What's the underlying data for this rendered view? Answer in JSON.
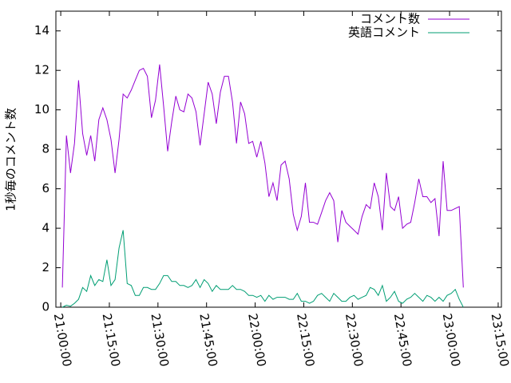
{
  "chart_data": {
    "type": "line",
    "y_label": "1秒毎のコメント数",
    "x": [
      "21:00:30",
      "21:01:45",
      "21:03:00",
      "21:04:15",
      "21:05:30",
      "21:06:45",
      "21:08:00",
      "21:09:15",
      "21:10:30",
      "21:11:45",
      "21:13:00",
      "21:14:15",
      "21:15:30",
      "21:16:45",
      "21:18:00",
      "21:19:15",
      "21:20:30",
      "21:21:45",
      "21:23:00",
      "21:24:15",
      "21:25:30",
      "21:26:45",
      "21:28:00",
      "21:29:15",
      "21:30:30",
      "21:31:45",
      "21:33:00",
      "21:34:15",
      "21:35:30",
      "21:36:45",
      "21:38:00",
      "21:39:15",
      "21:40:30",
      "21:41:45",
      "21:43:00",
      "21:44:15",
      "21:45:30",
      "21:46:45",
      "21:48:00",
      "21:49:15",
      "21:50:30",
      "21:51:45",
      "21:53:00",
      "21:54:15",
      "21:55:30",
      "21:56:45",
      "21:58:00",
      "21:59:15",
      "22:00:30",
      "22:01:45",
      "22:03:00",
      "22:04:15",
      "22:05:30",
      "22:06:45",
      "22:08:00",
      "22:09:15",
      "22:10:30",
      "22:11:45",
      "22:13:00",
      "22:14:15",
      "22:15:30",
      "22:16:45",
      "22:18:00",
      "22:19:15",
      "22:20:30",
      "22:21:45",
      "22:23:00",
      "22:24:15",
      "22:25:30",
      "22:26:45",
      "22:28:00",
      "22:29:15",
      "22:30:30",
      "22:31:45",
      "22:33:00",
      "22:34:15",
      "22:35:30",
      "22:36:45",
      "22:38:00",
      "22:39:15",
      "22:40:30",
      "22:41:45",
      "22:43:00",
      "22:44:15",
      "22:45:30",
      "22:46:45",
      "22:48:00",
      "22:49:15",
      "22:50:30",
      "22:51:45",
      "22:53:00",
      "22:54:15",
      "22:55:30",
      "22:56:45",
      "22:58:00",
      "22:59:15",
      "23:00:30",
      "23:01:45",
      "23:03:00",
      "23:04:15"
    ],
    "series": [
      {
        "name": "コメント数",
        "color": "#9400d3",
        "values": [
          1.0,
          8.7,
          6.8,
          8.3,
          11.5,
          8.8,
          7.7,
          8.7,
          7.4,
          9.5,
          10.1,
          9.5,
          8.5,
          6.8,
          8.5,
          10.8,
          10.6,
          11.0,
          11.5,
          12.0,
          12.1,
          11.7,
          9.6,
          10.5,
          12.3,
          10.2,
          7.9,
          9.4,
          10.7,
          10.0,
          9.9,
          10.8,
          10.6,
          9.9,
          8.2,
          9.8,
          11.4,
          10.8,
          9.3,
          10.9,
          11.7,
          11.7,
          10.4,
          8.3,
          10.4,
          9.8,
          8.3,
          8.4,
          7.6,
          8.4,
          7.3,
          5.6,
          6.3,
          5.4,
          7.2,
          7.4,
          6.5,
          4.7,
          3.9,
          4.6,
          6.3,
          4.3,
          4.3,
          4.2,
          4.8,
          5.4,
          5.8,
          5.4,
          3.3,
          4.9,
          4.3,
          4.1,
          3.9,
          3.7,
          4.6,
          5.2,
          5.0,
          6.3,
          5.6,
          3.9,
          6.8,
          5.1,
          4.9,
          5.6,
          4.0,
          4.2,
          4.3,
          5.3,
          6.5,
          5.6,
          5.6,
          5.3,
          5.5,
          3.6,
          7.4,
          4.9,
          4.9,
          5.0,
          5.1,
          1.0
        ]
      },
      {
        "name": "英語コメント",
        "color": "#009e73",
        "values": [
          0,
          0.1,
          0.05,
          0.2,
          0.4,
          1.0,
          0.8,
          1.6,
          1.1,
          1.4,
          1.3,
          2.4,
          1.1,
          1.4,
          3.0,
          3.9,
          1.2,
          1.1,
          0.6,
          0.6,
          1.0,
          1.0,
          0.9,
          0.9,
          1.2,
          1.6,
          1.6,
          1.3,
          1.3,
          1.1,
          1.1,
          1.0,
          1.1,
          1.4,
          1.0,
          1.4,
          1.2,
          0.8,
          1.1,
          0.9,
          0.9,
          0.9,
          1.1,
          0.9,
          0.9,
          0.8,
          0.6,
          0.6,
          0.5,
          0.6,
          0.3,
          0.6,
          0.4,
          0.5,
          0.5,
          0.5,
          0.4,
          0.4,
          0.7,
          0.3,
          0.3,
          0.2,
          0.3,
          0.6,
          0.7,
          0.5,
          0.3,
          0.7,
          0.5,
          0.3,
          0.3,
          0.5,
          0.6,
          0.4,
          0.5,
          0.6,
          1.0,
          0.9,
          0.6,
          1.1,
          0.3,
          0.5,
          0.8,
          0.3,
          0.2,
          0.4,
          0.5,
          0.7,
          0.5,
          0.3,
          0.6,
          0.5,
          0.3,
          0.5,
          0.3,
          0.6,
          0.7,
          0.9,
          0.4,
          0.0
        ]
      }
    ],
    "xlim": [
      "20:58:30",
      "23:16:00"
    ],
    "xticks": [
      "21:00:00",
      "21:15:00",
      "21:30:00",
      "21:45:00",
      "22:00:00",
      "22:15:00",
      "22:30:00",
      "22:45:00",
      "23:00:00",
      "23:15:00"
    ],
    "ylim": [
      0,
      15
    ],
    "yticks": [
      0,
      2,
      4,
      6,
      8,
      10,
      12,
      14
    ],
    "legend": "top-right"
  }
}
